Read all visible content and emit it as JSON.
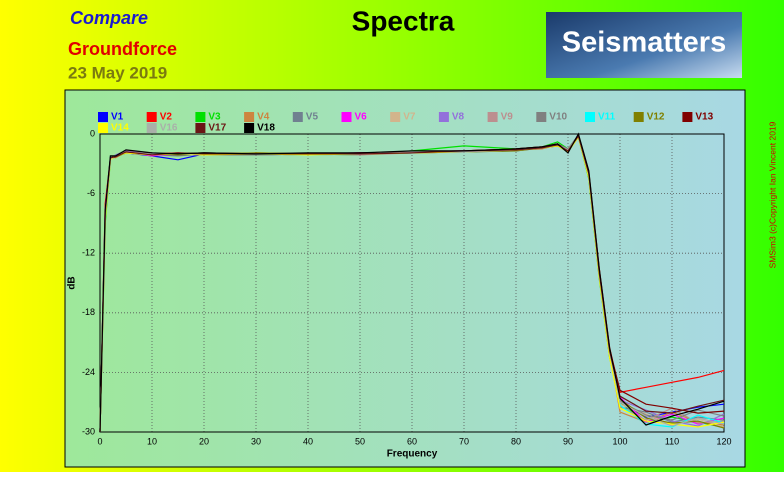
{
  "chart_data": {
    "type": "line",
    "title": "Spectra",
    "annotations": [
      "Compare",
      "Groundforce",
      "23 May 2019",
      "Seismatters",
      "SMSim3 (c)Copyright Ian Vincent 2019"
    ],
    "x_label": "Frequency",
    "y_label": "dB",
    "xlim": [
      0,
      120
    ],
    "xticks": [
      0,
      10,
      20,
      30,
      40,
      50,
      60,
      70,
      80,
      90,
      100,
      110,
      120
    ],
    "ylim": [
      -30,
      0
    ],
    "yticks": [
      -30,
      -24,
      -18,
      -12,
      -6,
      0
    ],
    "grid": true,
    "x": [
      0,
      1,
      2,
      3,
      5,
      10,
      15,
      20,
      30,
      40,
      50,
      60,
      70,
      80,
      85,
      88,
      90,
      92,
      94,
      96,
      98,
      100,
      105,
      110,
      115,
      120
    ],
    "series": [
      {
        "name": "V1",
        "color": "#0000ff",
        "values": [
          -30,
          -8,
          -2.4,
          -2.2,
          -1.9,
          -2.2,
          -2.6,
          -2.0,
          -2.1,
          -2.0,
          -2.0,
          -1.9,
          -1.8,
          -1.6,
          -1.4,
          -1.2,
          -1.7,
          -0.2,
          -4.2,
          -14,
          -22,
          -27,
          -28.5,
          -28,
          -27.5,
          -27.2
        ]
      },
      {
        "name": "V2",
        "color": "#ff0000",
        "values": [
          -30,
          -7,
          -2.5,
          -2.3,
          -1.7,
          -2.0,
          -1.9,
          -2.1,
          -2.0,
          -2.1,
          -1.9,
          -1.8,
          -1.7,
          -1.5,
          -1.3,
          -1.0,
          -1.8,
          -0.1,
          -3.8,
          -13.5,
          -21.5,
          -26,
          -25.5,
          -25,
          -24.5,
          -23.8
        ]
      },
      {
        "name": "V3",
        "color": "#00e000",
        "values": [
          -30,
          -9,
          -2.6,
          -2.1,
          -1.8,
          -2.1,
          -2.0,
          -1.9,
          -2.0,
          -2.0,
          -2.1,
          -1.7,
          -1.2,
          -1.5,
          -1.3,
          -0.8,
          -1.5,
          -0.3,
          -4.5,
          -14.5,
          -22.5,
          -27,
          -29,
          -28.5,
          -29,
          -29.5
        ]
      },
      {
        "name": "V4",
        "color": "#cd853f",
        "values": [
          -30,
          -8,
          -2.3,
          -2.4,
          -1.8,
          -2.0,
          -2.1,
          -2.0,
          -1.9,
          -2.0,
          -2.0,
          -1.8,
          -1.7,
          -1.6,
          -1.5,
          -1.1,
          -1.6,
          -0.2,
          -4.0,
          -14,
          -22,
          -28,
          -29,
          -28,
          -29,
          -29.3
        ]
      },
      {
        "name": "V5",
        "color": "#708090",
        "values": [
          -30,
          -8.5,
          -2.5,
          -2.2,
          -1.9,
          -2.1,
          -2.2,
          -2.0,
          -2.0,
          -2.1,
          -2.0,
          -1.9,
          -1.8,
          -1.7,
          -1.4,
          -1.2,
          -1.8,
          -0.3,
          -4.3,
          -14.2,
          -22.2,
          -27.5,
          -28,
          -29,
          -28.5,
          -28.8
        ]
      },
      {
        "name": "V6",
        "color": "#ff00ff",
        "values": [
          -30,
          -7.5,
          -2.4,
          -2.3,
          -1.8,
          -2.2,
          -2.0,
          -2.1,
          -2.0,
          -2.0,
          -1.9,
          -1.8,
          -1.7,
          -1.6,
          -1.4,
          -1.1,
          -1.7,
          -0.1,
          -4.1,
          -13.8,
          -21.8,
          -26.5,
          -29,
          -28.2,
          -29.2,
          -28.6
        ]
      },
      {
        "name": "V7",
        "color": "#d2b48c",
        "values": [
          -30,
          -8,
          -2.6,
          -2.2,
          -1.9,
          -2.1,
          -2.0,
          -2.0,
          -2.1,
          -2.0,
          -2.0,
          -1.9,
          -1.8,
          -1.6,
          -1.4,
          -1.2,
          -1.6,
          -0.2,
          -4.2,
          -14.1,
          -22.1,
          -27.2,
          -28.2,
          -29.3,
          -28.7,
          -29.5
        ]
      },
      {
        "name": "V8",
        "color": "#9370db",
        "values": [
          -30,
          -8.2,
          -2.5,
          -2.1,
          -1.7,
          -2.0,
          -2.1,
          -1.9,
          -2.0,
          -2.1,
          -2.0,
          -1.8,
          -1.8,
          -1.5,
          -1.3,
          -1.1,
          -1.6,
          -0.2,
          -4.0,
          -13.9,
          -22,
          -26.8,
          -27.8,
          -28.9,
          -29.4,
          -28.2
        ]
      },
      {
        "name": "V9",
        "color": "#bc8f8f",
        "values": [
          -30,
          -8.1,
          -2.4,
          -2.3,
          -1.8,
          -2.1,
          -1.9,
          -2.0,
          -2.0,
          -2.0,
          -2.1,
          -1.9,
          -1.7,
          -1.6,
          -1.4,
          -1.2,
          -1.7,
          -0.3,
          -4.2,
          -14.3,
          -22.3,
          -27.4,
          -28.8,
          -27.6,
          -29.1,
          -28.9
        ]
      },
      {
        "name": "V10",
        "color": "#808080",
        "values": [
          -30,
          -8.3,
          -2.5,
          -2.2,
          -1.9,
          -2.0,
          -2.0,
          -2.1,
          -2.1,
          -2.0,
          -2.0,
          -1.8,
          -1.8,
          -1.6,
          -1.3,
          -1.0,
          -1.5,
          -0.1,
          -3.9,
          -13.7,
          -21.9,
          -26.9,
          -28.3,
          -28.8,
          -27.8,
          -28.4
        ]
      },
      {
        "name": "V11",
        "color": "#00ffff",
        "values": [
          -30,
          -7.8,
          -2.3,
          -2.2,
          -1.8,
          -2.1,
          -2.0,
          -2.0,
          -2.0,
          -2.1,
          -2.0,
          -1.9,
          -1.7,
          -1.6,
          -1.4,
          -1.1,
          -1.7,
          -0.2,
          -4.1,
          -14,
          -22.1,
          -27.3,
          -29.2,
          -29.5,
          -28.3,
          -29.1
        ]
      },
      {
        "name": "V12",
        "color": "#808000",
        "values": [
          -30,
          -8.4,
          -2.5,
          -2.3,
          -1.9,
          -2.0,
          -2.1,
          -2.0,
          -1.9,
          -2.0,
          -2.0,
          -1.9,
          -1.8,
          -1.7,
          -1.4,
          -1.2,
          -1.6,
          -0.2,
          -4.2,
          -14.2,
          -22.4,
          -26.7,
          -28.6,
          -29.1,
          -28.9,
          -29.6
        ]
      },
      {
        "name": "V13",
        "color": "#800000",
        "values": [
          -30,
          -8,
          -2.4,
          -2.2,
          -1.8,
          -2.0,
          -2.0,
          -1.9,
          -2.0,
          -2.0,
          -1.9,
          -1.8,
          -1.7,
          -1.5,
          -1.3,
          -1.0,
          -1.7,
          -0.1,
          -4.0,
          -13.8,
          -21.7,
          -25.8,
          -27.2,
          -27.6,
          -28.1,
          -27.9
        ]
      },
      {
        "name": "V14",
        "color": "#ffff00",
        "values": [
          -30,
          -8.6,
          -2.6,
          -2.2,
          -1.9,
          -2.1,
          -2.0,
          -2.1,
          -2.0,
          -2.1,
          -2.0,
          -1.9,
          -1.8,
          -1.6,
          -1.4,
          -1.2,
          -1.8,
          -0.3,
          -4.4,
          -14.4,
          -22.5,
          -27.6,
          -28.9,
          -29.2,
          -29.5,
          -29.0
        ]
      },
      {
        "name": "V16",
        "color": "#a9b0a9",
        "values": [
          -30,
          -8.2,
          -2.5,
          -2.2,
          -1.8,
          -2.0,
          -2.0,
          -2.0,
          -2.0,
          -2.0,
          -2.0,
          -1.8,
          -1.8,
          -1.6,
          -1.4,
          -1.1,
          -1.6,
          -0.2,
          -4.1,
          -14,
          -22,
          -27,
          -28.4,
          -29.4,
          -28.6,
          -29.2
        ]
      },
      {
        "name": "V17",
        "color": "#6b1515",
        "values": [
          -30,
          -7.9,
          -2.4,
          -2.3,
          -1.8,
          -2.1,
          -1.9,
          -2.0,
          -2.0,
          -2.0,
          -2.0,
          -1.9,
          -1.7,
          -1.6,
          -1.4,
          -1.1,
          -1.7,
          -0.2,
          -4.0,
          -13.9,
          -21.8,
          -26.4,
          -27.9,
          -28.1,
          -27.4,
          -26.8
        ]
      },
      {
        "name": "V18",
        "color": "#000000",
        "values": [
          -30,
          -7.6,
          -2.2,
          -2.2,
          -1.6,
          -1.9,
          -2.0,
          -1.9,
          -2.0,
          -1.9,
          -1.9,
          -1.7,
          -1.7,
          -1.5,
          -1.3,
          -1.0,
          -1.9,
          0,
          -3.7,
          -13.5,
          -21.5,
          -26.6,
          -29.3,
          -28.4,
          -27.7,
          -26.9
        ]
      }
    ]
  }
}
